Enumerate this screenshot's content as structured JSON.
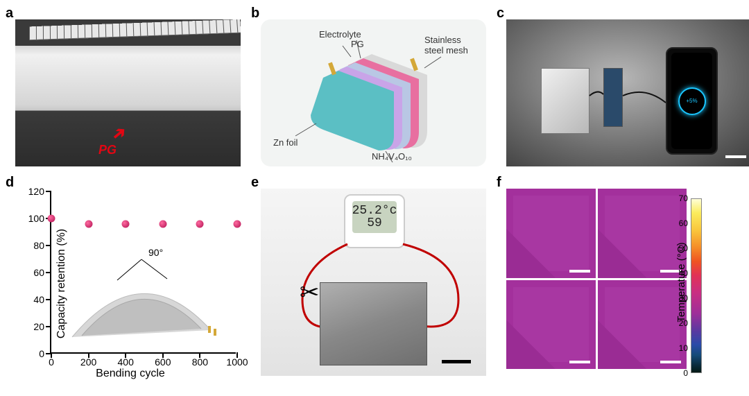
{
  "panels": {
    "a": {
      "label": "a",
      "annotation": "PG"
    },
    "b": {
      "label": "b",
      "callouts": {
        "electrolyte": "Electrolyte",
        "pg": "PG",
        "mesh": "Stainless\nsteel mesh",
        "zn": "Zn foil",
        "nvo": "NH₄V₄O₁₀"
      },
      "layer_colors": {
        "zn": "#5bbfc4",
        "electrolyte_top": "#c9a4e8",
        "pg": "#b9c7e4",
        "cathode": "#e86fa0",
        "mesh": "#d9d9d9",
        "background": "#f2f4f3"
      }
    },
    "c": {
      "label": "c",
      "phone_text": "+5%"
    },
    "d": {
      "label": "d",
      "type": "scatter",
      "xlabel": "Bending cycle",
      "ylabel": "Capacity retention (%)",
      "xlim": [
        0,
        1000
      ],
      "xtick_step": 200,
      "ylim": [
        0,
        120
      ],
      "ytick_step": 20,
      "points_x": [
        0,
        200,
        400,
        600,
        800,
        1000
      ],
      "points_y": [
        100,
        96,
        96,
        96,
        96,
        96
      ],
      "marker_color": "#c02060",
      "bend_angle": "90°",
      "inset_outer": "#d7d7d7",
      "inset_inner": "#bfbfbf",
      "label_fontsize": 16,
      "tick_fontsize": 14
    },
    "e": {
      "label": "e",
      "lcd_top": "25.2°c",
      "lcd_bottom": "59"
    },
    "f": {
      "label": "f",
      "type": "heatmap",
      "colorbar_label": "Temperature (°C)",
      "colorbar_ticks": [
        0,
        10,
        20,
        30,
        40,
        50,
        60,
        70
      ],
      "colorbar_min": 0,
      "colorbar_max": 70,
      "base_color": "#a3309c",
      "inner_color": "#a837a2",
      "gradient_stops": [
        "#fefed8",
        "#fbec5d",
        "#f9c63c",
        "#f58c28",
        "#ef5422",
        "#e13256",
        "#c92e82",
        "#9e2e99",
        "#5a3aa0",
        "#2a4aa8",
        "#144a78",
        "#0a2a3a",
        "#041a14"
      ]
    }
  }
}
